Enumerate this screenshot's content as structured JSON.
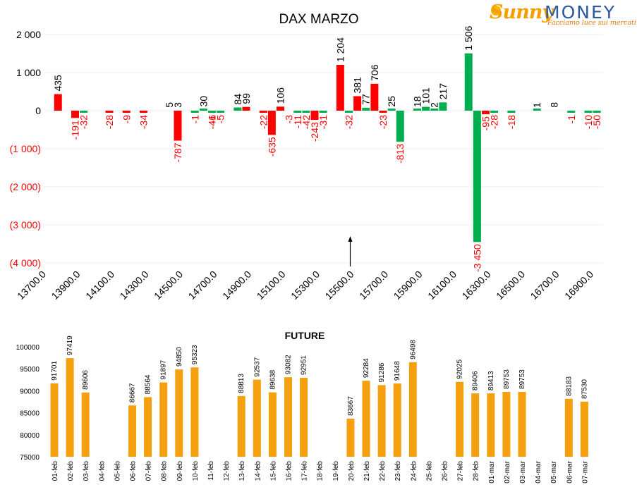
{
  "logo": {
    "brand_left": "Sunny",
    "brand_right": "MONEY",
    "tagline": "Facciamo luce sui mercati"
  },
  "colors": {
    "positive": "#00b050",
    "negative": "#ff0000",
    "future_bar": "#f5a00f",
    "negative_label": "#ff0000",
    "text": "#000000"
  },
  "chart_data": [
    {
      "type": "bar",
      "title": "DAX MARZO",
      "ylim": [
        -4000,
        2000
      ],
      "y_ticks": [
        2000,
        1000,
        0,
        -1000,
        -2000,
        -3000,
        -4000
      ],
      "y_tick_labels": [
        "2 000",
        "1 000",
        "0",
        "(1 000)",
        "(2 000)",
        "(3 000)",
        "(4 000)"
      ],
      "x_tick_labels": [
        "13700.0",
        "13900.0",
        "14100.0",
        "14300.0",
        "14500.0",
        "14700.0",
        "14900.0",
        "15100.0",
        "15300.0",
        "15500.0",
        "15700.0",
        "15900.0",
        "16100.0",
        "16300.0",
        "16500.0",
        "16700.0",
        "16900.0"
      ],
      "grid": true,
      "marker": {
        "label": "",
        "x": 15500
      },
      "series": [
        {
          "color": "red",
          "points": [
            [
              13800,
              435
            ],
            [
              13900,
              -191
            ],
            [
              14100,
              -28
            ],
            [
              14200,
              -9
            ],
            [
              14300,
              -34
            ],
            [
              14500,
              -787
            ],
            [
              14700,
              -46
            ],
            [
              14900,
              99
            ],
            [
              15000,
              -22
            ],
            [
              15050,
              -635
            ],
            [
              15100,
              106
            ],
            [
              15300,
              -243
            ],
            [
              15450,
              1204
            ],
            [
              15550,
              381
            ],
            [
              15650,
              706
            ],
            [
              15700,
              -23
            ],
            [
              16300,
              -95
            ]
          ]
        },
        {
          "color": "green",
          "points": [
            [
              13950,
              -32
            ],
            [
              14600,
              -1
            ],
            [
              14650,
              30
            ],
            [
              14700,
              -1
            ],
            [
              14750,
              -5
            ],
            [
              14850,
              84
            ],
            [
              15200,
              -11
            ],
            [
              15250,
              -42
            ],
            [
              15350,
              -31
            ],
            [
              15500,
              -32
            ],
            [
              15600,
              77
            ],
            [
              15750,
              25
            ],
            [
              15800,
              -813
            ],
            [
              15900,
              18
            ],
            [
              15950,
              101
            ],
            [
              16000,
              2
            ],
            [
              16050,
              217
            ],
            [
              16200,
              1506
            ],
            [
              16250,
              -3450
            ],
            [
              16350,
              -28
            ],
            [
              16450,
              -18
            ],
            [
              16600,
              1
            ],
            [
              16800,
              -1
            ],
            [
              16900,
              -10
            ],
            [
              16950,
              -50
            ]
          ]
        },
        {
          "color": "none",
          "points": [
            [
              14450,
              5
            ],
            [
              14500,
              3
            ],
            [
              15150,
              -3
            ],
            [
              16700,
              8
            ]
          ]
        }
      ]
    },
    {
      "type": "bar",
      "title": "FUTURE",
      "ylim": [
        75000,
        100000
      ],
      "y_ticks": [
        75000,
        80000,
        85000,
        90000,
        95000,
        100000
      ],
      "grid": false,
      "categories": [
        "01-feb",
        "02-feb",
        "03-feb",
        "04-feb",
        "05-feb",
        "06-feb",
        "07-feb",
        "08-feb",
        "09-feb",
        "10-feb",
        "11-feb",
        "12-feb",
        "13-feb",
        "14-feb",
        "15-feb",
        "16-feb",
        "17-feb",
        "18-feb",
        "19-feb",
        "20-feb",
        "21-feb",
        "22-feb",
        "23-feb",
        "24-feb",
        "25-feb",
        "26-feb",
        "27-feb",
        "28-feb",
        "01-mar",
        "02-mar",
        "03-mar",
        "04-mar",
        "05-mar",
        "06-mar",
        "07-mar"
      ],
      "values": [
        91701,
        97419,
        89606,
        null,
        null,
        86667,
        88564,
        91897,
        94850,
        95323,
        null,
        null,
        88813,
        92537,
        89638,
        93082,
        92951,
        null,
        null,
        83667,
        92284,
        91286,
        91648,
        96498,
        null,
        null,
        92025,
        89406,
        89413,
        89753,
        89753,
        null,
        null,
        88183,
        87530
      ]
    }
  ]
}
